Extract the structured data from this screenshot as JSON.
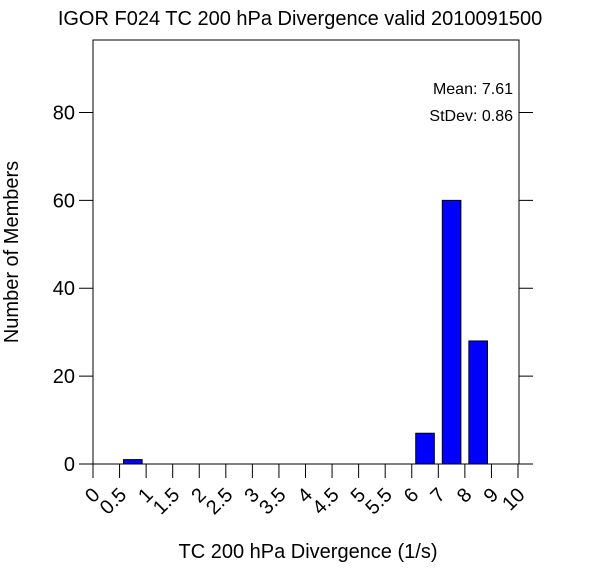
{
  "chart_data": {
    "type": "bar",
    "title": "IGOR F024 TC 200 hPa Divergence valid 2010091500",
    "xlabel": "TC 200 hPa Divergence (1/s)",
    "ylabel": "Number of Members",
    "x_ticks": [
      "0",
      "0.5",
      "1",
      "1.5",
      "2",
      "2.5",
      "3",
      "3.5",
      "4",
      "4.5",
      "5",
      "5.5",
      "6",
      "7",
      "8",
      "9",
      "10"
    ],
    "y_ticks": [
      0,
      20,
      40,
      60,
      80
    ],
    "ylim": [
      0,
      96.5
    ],
    "bars": [
      {
        "x_start": "0.5",
        "x_end": "1",
        "value": 1
      },
      {
        "x_start": "6",
        "x_end": "7",
        "value": 7
      },
      {
        "x_start": "7",
        "x_end": "8",
        "value": 60
      },
      {
        "x_start": "8",
        "x_end": "9",
        "value": 28
      }
    ],
    "bar_color": "#0000ff",
    "grid": false,
    "stats": {
      "mean_label": "Mean: 7.61",
      "stdev_label": "StDev: 0.86"
    }
  }
}
